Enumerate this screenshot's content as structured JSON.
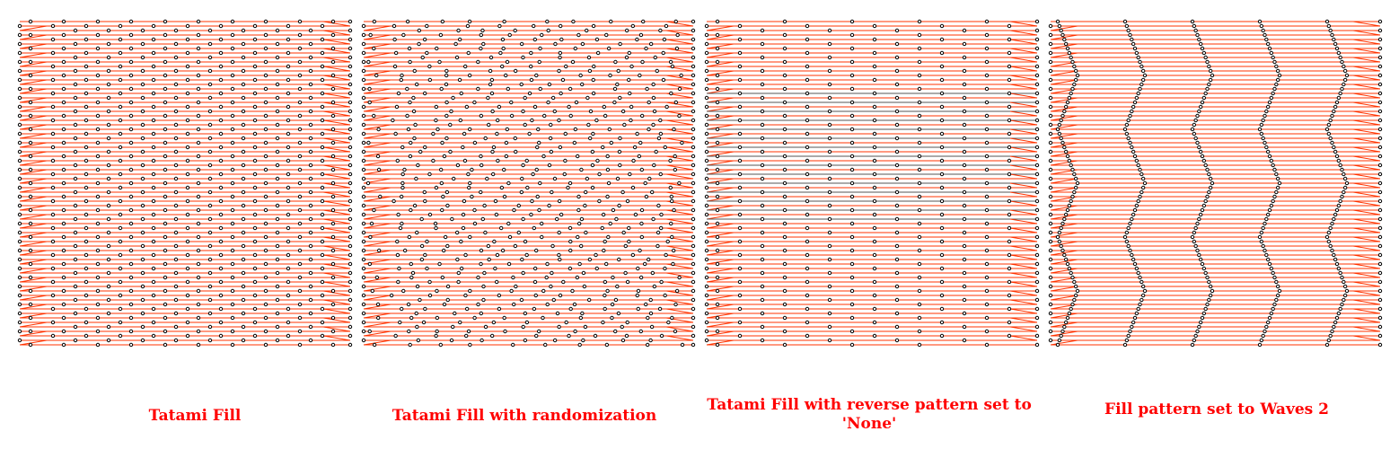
{
  "colors": {
    "thread": "#ff3300",
    "needle_point": "#000000",
    "point_fill": "#ffffff",
    "label": "#ff0000",
    "jump": "#555555"
  },
  "panels": [
    {
      "id": "tatami",
      "label": "Tatami Fill",
      "pattern": "tatami"
    },
    {
      "id": "tatami-random",
      "label": "Tatami Fill with randomization",
      "pattern": "tatami-random"
    },
    {
      "id": "tatami-no-reverse",
      "label": "Tatami Fill with reverse pattern set to 'None'",
      "pattern": "tatami-no-reverse"
    },
    {
      "id": "waves",
      "label": "Fill pattern set to Waves 2",
      "pattern": "waves"
    }
  ]
}
